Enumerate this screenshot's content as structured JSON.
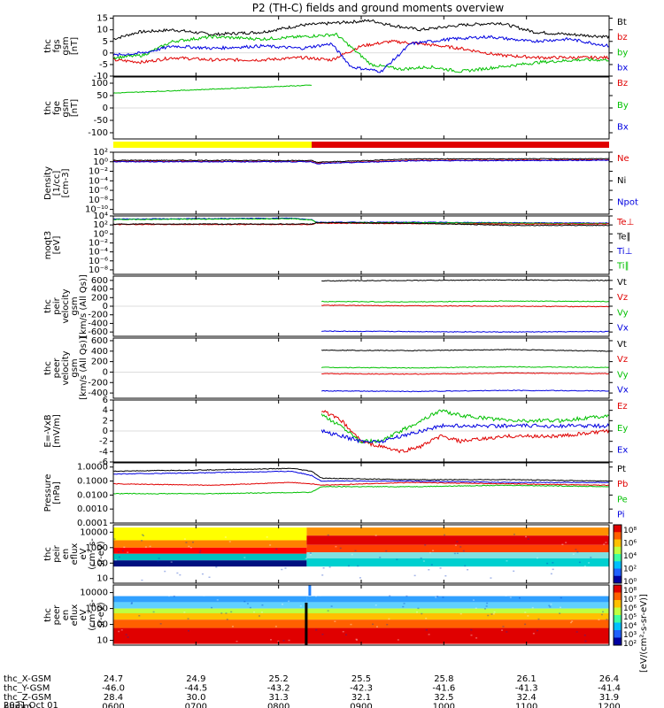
{
  "title": "P2 (TH-C) fields and ground moments overview",
  "chart_data": [
    {
      "id": "fgs",
      "type": "line",
      "ylabel": [
        "thc",
        "fgs",
        "gsm",
        "[nT]"
      ],
      "yticks": [
        15,
        10,
        5,
        0,
        -5,
        -10
      ],
      "ylim": [
        -10,
        16
      ],
      "legend": [
        {
          "name": "Bt",
          "color": "#000000"
        },
        {
          "name": "bz",
          "color": "#e00000"
        },
        {
          "name": "by",
          "color": "#00c000"
        },
        {
          "name": "bx",
          "color": "#0000e0"
        }
      ],
      "series": [
        {
          "name": "Bt",
          "x": [
            0,
            0.05,
            0.12,
            0.2,
            0.3,
            0.38,
            0.45,
            0.52,
            0.56,
            0.62,
            0.7,
            0.78,
            0.85,
            0.92,
            1.0
          ],
          "y": [
            6,
            9,
            10,
            8,
            9,
            12,
            13,
            14,
            12,
            10,
            12,
            13,
            9,
            8,
            7
          ]
        },
        {
          "name": "bz",
          "x": [
            0,
            0.06,
            0.12,
            0.2,
            0.3,
            0.38,
            0.44,
            0.5,
            0.56,
            0.62,
            0.7,
            0.78,
            0.86,
            0.94,
            1.0
          ],
          "y": [
            -3,
            -4,
            -2,
            -3,
            -3,
            -2,
            -3,
            3,
            5,
            4,
            2,
            -1,
            -2,
            -2,
            -2
          ]
        },
        {
          "name": "by",
          "x": [
            0,
            0.06,
            0.12,
            0.2,
            0.3,
            0.38,
            0.45,
            0.52,
            0.58,
            0.64,
            0.7,
            0.78,
            0.86,
            0.94,
            1.0
          ],
          "y": [
            -2,
            -1,
            5,
            7,
            6,
            7,
            8,
            -5,
            -7,
            -6,
            -8,
            -6,
            -4,
            -3,
            -3
          ]
        },
        {
          "name": "bx",
          "x": [
            0,
            0.06,
            0.12,
            0.2,
            0.3,
            0.38,
            0.44,
            0.48,
            0.54,
            0.6,
            0.68,
            0.76,
            0.84,
            0.92,
            1.0
          ],
          "y": [
            -1,
            0,
            3,
            2,
            3,
            2,
            4,
            -6,
            -8,
            4,
            6,
            7,
            5,
            6,
            3
          ]
        }
      ]
    },
    {
      "id": "fge",
      "type": "line",
      "ylabel": [
        "thc",
        "fge",
        "gsm",
        "[nT]"
      ],
      "yticks": [
        100,
        50,
        0,
        -50,
        -100
      ],
      "ylim": [
        -125,
        125
      ],
      "legend": [
        {
          "name": "Bz",
          "color": "#e00000"
        },
        {
          "name": "By",
          "color": "#00c000"
        },
        {
          "name": "Bx",
          "color": "#0000e0"
        }
      ],
      "series": [
        {
          "name": "By",
          "x": [
            0,
            0.1,
            0.2,
            0.3,
            0.4
          ],
          "y": [
            60,
            68,
            76,
            84,
            92
          ]
        }
      ],
      "status_bar": [
        {
          "from": 0,
          "to": 0.4,
          "color": "#ffff00"
        },
        {
          "from": 0.4,
          "to": 1.0,
          "color": "#e00000"
        }
      ]
    },
    {
      "id": "density",
      "type": "line",
      "ylabel": [
        "Density",
        "[1/cc]",
        "[cm-3]"
      ],
      "yticks": [
        "10²",
        "10⁰",
        "10⁻²",
        "10⁻⁴",
        "10⁻⁶",
        "10⁻⁸",
        "10⁻¹⁰"
      ],
      "ylim": [
        -11,
        2
      ],
      "log": true,
      "legend": [
        {
          "name": "Ne",
          "color": "#e00000"
        },
        {
          "name": "Ni",
          "color": "#000000"
        },
        {
          "name": "Npot",
          "color": "#0000e0"
        }
      ],
      "series": [
        {
          "name": "Ne",
          "x": [
            0,
            0.2,
            0.4,
            0.41,
            0.6,
            0.8,
            1.0
          ],
          "y": [
            0.1,
            0.1,
            0.05,
            -0.3,
            0.3,
            0.35,
            0.4
          ]
        },
        {
          "name": "Ni",
          "x": [
            0,
            0.2,
            0.4,
            0.41,
            0.6,
            0.8,
            1.0
          ],
          "y": [
            0.3,
            0.3,
            0.25,
            -0.1,
            0.6,
            0.6,
            0.65
          ]
        },
        {
          "name": "Npot",
          "x": [
            0,
            0.2,
            0.4,
            0.41,
            0.6,
            0.8,
            1.0
          ],
          "y": [
            0.0,
            0.0,
            0.0,
            -0.4,
            0.2,
            0.25,
            0.3
          ]
        }
      ]
    },
    {
      "id": "temp",
      "type": "line",
      "ylabel": [
        "moqt3",
        "[eV]"
      ],
      "yticks": [
        "10⁴",
        "10²",
        "10⁰",
        "10⁻²",
        "10⁻⁴",
        "10⁻⁶",
        "10⁻⁸"
      ],
      "ylim": [
        -9,
        4
      ],
      "log": true,
      "legend": [
        {
          "name": "Te⊥",
          "color": "#e00000"
        },
        {
          "name": "Te∥",
          "color": "#000000"
        },
        {
          "name": "Ti⊥",
          "color": "#0000e0"
        },
        {
          "name": "Ti∥",
          "color": "#00c000"
        }
      ],
      "series": [
        {
          "name": "Ti⊥",
          "x": [
            0,
            0.2,
            0.36,
            0.4,
            0.41,
            0.6,
            0.8,
            1.0
          ],
          "y": [
            3.3,
            3.4,
            3.5,
            3.2,
            2.6,
            2.6,
            2.5,
            2.4
          ]
        },
        {
          "name": "Ti∥",
          "x": [
            0,
            0.2,
            0.36,
            0.4,
            0.41,
            0.6,
            0.8,
            1.0
          ],
          "y": [
            3.2,
            3.3,
            3.4,
            3.1,
            2.5,
            2.5,
            2.4,
            2.3
          ]
        },
        {
          "name": "Te⊥",
          "x": [
            0,
            0.4,
            0.41,
            0.6,
            0.8,
            1.0
          ],
          "y": [
            2.1,
            2.1,
            2.4,
            2.3,
            2.2,
            2.2
          ]
        },
        {
          "name": "Te∥",
          "x": [
            0,
            0.4,
            0.41,
            0.6,
            0.8,
            1.0
          ],
          "y": [
            2.2,
            2.2,
            2.5,
            2.4,
            1.9,
            1.9
          ]
        }
      ]
    },
    {
      "id": "peir_vel",
      "type": "line",
      "ylabel": [
        "thc",
        "peir",
        "velocity",
        "gsm",
        "[km/s (All Qs)]"
      ],
      "yticks": [
        600,
        400,
        200,
        0,
        -200,
        -400,
        -600
      ],
      "ylim": [
        -700,
        700
      ],
      "legend": [
        {
          "name": "Vt",
          "color": "#000000"
        },
        {
          "name": "Vz",
          "color": "#e00000"
        },
        {
          "name": "Vy",
          "color": "#00c000"
        },
        {
          "name": "Vx",
          "color": "#0000e0"
        }
      ],
      "series": [
        {
          "name": "Vt",
          "x": [
            0.42,
            0.6,
            0.8,
            1.0
          ],
          "y": [
            590,
            600,
            610,
            600
          ]
        },
        {
          "name": "Vy",
          "x": [
            0.42,
            0.6,
            0.8,
            1.0
          ],
          "y": [
            110,
            100,
            120,
            110
          ]
        },
        {
          "name": "Vz",
          "x": [
            0.42,
            0.6,
            0.8,
            1.0
          ],
          "y": [
            20,
            10,
            0,
            -10
          ]
        },
        {
          "name": "Vx",
          "x": [
            0.42,
            0.6,
            0.8,
            1.0
          ],
          "y": [
            -580,
            -590,
            -600,
            -590
          ]
        }
      ]
    },
    {
      "id": "peer_vel",
      "type": "line",
      "ylabel": [
        "thc",
        "peer",
        "velocity",
        "gsm",
        "[km/s (All Qs)]"
      ],
      "yticks": [
        600,
        400,
        200,
        0,
        -200,
        -400
      ],
      "ylim": [
        -500,
        650
      ],
      "legend": [
        {
          "name": "Vt",
          "color": "#000000"
        },
        {
          "name": "Vz",
          "color": "#e00000"
        },
        {
          "name": "Vy",
          "color": "#00c000"
        },
        {
          "name": "Vx",
          "color": "#0000e0"
        }
      ],
      "series": [
        {
          "name": "Vt",
          "x": [
            0.42,
            0.6,
            0.8,
            1.0
          ],
          "y": [
            420,
            410,
            430,
            400
          ]
        },
        {
          "name": "Vy",
          "x": [
            0.42,
            0.6,
            0.8,
            1.0
          ],
          "y": [
            90,
            80,
            100,
            90
          ]
        },
        {
          "name": "Vz",
          "x": [
            0.42,
            0.6,
            0.8,
            1.0
          ],
          "y": [
            -30,
            -40,
            -20,
            -30
          ]
        },
        {
          "name": "Vx",
          "x": [
            0.42,
            0.6,
            0.8,
            1.0
          ],
          "y": [
            -360,
            -370,
            -350,
            -360
          ]
        }
      ]
    },
    {
      "id": "efield",
      "type": "line",
      "ylabel": [
        "E=-VxB",
        "[mV/m]"
      ],
      "yticks": [
        6,
        4,
        2,
        0,
        -2,
        -4,
        -6
      ],
      "ylim": [
        -6,
        6
      ],
      "legend": [
        {
          "name": "Ez",
          "color": "#e00000"
        },
        {
          "name": "Ey",
          "color": "#00c000"
        },
        {
          "name": "Ex",
          "color": "#0000e0"
        }
      ],
      "series": [
        {
          "name": "Ez",
          "x": [
            0.42,
            0.46,
            0.5,
            0.54,
            0.58,
            0.62,
            0.66,
            0.7,
            0.8,
            0.9,
            1.0
          ],
          "y": [
            4,
            2,
            -2,
            -3,
            -4,
            -3,
            -1,
            -2,
            -1,
            -1,
            0
          ]
        },
        {
          "name": "Ey",
          "x": [
            0.42,
            0.46,
            0.5,
            0.54,
            0.58,
            0.62,
            0.66,
            0.7,
            0.8,
            0.9,
            1.0
          ],
          "y": [
            3,
            1,
            -2,
            -2,
            0,
            2,
            4,
            3,
            2,
            2,
            3
          ]
        },
        {
          "name": "Ex",
          "x": [
            0.42,
            0.46,
            0.5,
            0.54,
            0.58,
            0.62,
            0.66,
            0.7,
            0.8,
            0.9,
            1.0
          ],
          "y": [
            0,
            -1,
            -2,
            -2,
            -1,
            0,
            1,
            1,
            1,
            1,
            1
          ]
        }
      ]
    },
    {
      "id": "pressure",
      "type": "line",
      "ylabel": [
        "Pressure",
        "[nPa]"
      ],
      "yticks": [
        "1.0000",
        "0.1000",
        "0.0100",
        "0.0010",
        "0.0001"
      ],
      "ylim": [
        -4,
        0.3
      ],
      "log": true,
      "legend": [
        {
          "name": "Pt",
          "color": "#000000"
        },
        {
          "name": "Pb",
          "color": "#e00000"
        },
        {
          "name": "Pe",
          "color": "#00c000"
        },
        {
          "name": "Pi",
          "color": "#0000e0"
        }
      ],
      "series": [
        {
          "name": "Pt",
          "x": [
            0,
            0.2,
            0.36,
            0.4,
            0.42,
            0.6,
            0.8,
            1.0
          ],
          "y": [
            -0.3,
            -0.2,
            -0.1,
            -0.3,
            -0.8,
            -0.9,
            -0.9,
            -1.0
          ]
        },
        {
          "name": "Pb",
          "x": [
            0,
            0.2,
            0.36,
            0.4,
            0.42,
            0.6,
            0.8,
            1.0
          ],
          "y": [
            -1.2,
            -1.3,
            -1.1,
            -1.2,
            -1.3,
            -1.1,
            -1.2,
            -1.3
          ]
        },
        {
          "name": "Pe",
          "x": [
            0,
            0.2,
            0.4,
            0.42,
            0.6,
            0.8,
            1.0
          ],
          "y": [
            -1.9,
            -1.9,
            -1.8,
            -1.4,
            -1.4,
            -1.3,
            -1.4
          ]
        },
        {
          "name": "Pi",
          "x": [
            0,
            0.2,
            0.36,
            0.4,
            0.42,
            0.6,
            0.8,
            1.0
          ],
          "y": [
            -0.5,
            -0.4,
            -0.3,
            -0.6,
            -1.0,
            -1.0,
            -1.1,
            -1.1
          ]
        }
      ]
    },
    {
      "id": "peir_spec",
      "type": "heatmap",
      "ylabel": [
        "thc",
        "peir",
        "en",
        "eflux",
        "eV",
        "(cm²-s-",
        "sr-eV)"
      ],
      "yticks": [
        10000,
        1000,
        100,
        10
      ],
      "ylim": [
        5,
        30000
      ],
      "colorbar_ticks": [
        "10⁸",
        "10⁶",
        "10⁴",
        "10²",
        "10⁰"
      ],
      "colorbar_label": "[eV/(cm²-s-sr-eV)]"
    },
    {
      "id": "peer_spec",
      "type": "heatmap",
      "ylabel": [
        "thc",
        "peer",
        "en",
        "eflux",
        "eV",
        "(cm²-s-",
        "sr-eV)"
      ],
      "yticks": [
        10000,
        1000,
        100,
        10
      ],
      "ylim": [
        5,
        30000
      ],
      "colorbar_ticks": [
        "10⁸",
        "10⁷",
        "10⁶",
        "10⁵",
        "10⁴",
        "10³",
        "10²"
      ],
      "colorbar_label": "[eV/(cm²-s-sr-eV)]"
    }
  ],
  "xaxis": {
    "rows": [
      {
        "label": "thc_X-GSM",
        "values": [
          "24.7",
          "24.9",
          "25.2",
          "25.5",
          "25.8",
          "26.1",
          "26.4"
        ]
      },
      {
        "label": "thc_Y-GSM",
        "values": [
          "-46.0",
          "-44.5",
          "-43.2",
          "-42.3",
          "-41.6",
          "-41.3",
          "-41.4"
        ]
      },
      {
        "label": "thc_Z-GSM",
        "values": [
          "28.4",
          "30.0",
          "31.3",
          "32.1",
          "32.5",
          "32.4",
          "31.9"
        ]
      },
      {
        "label": "hhmm",
        "values": [
          "0600",
          "0700",
          "0800",
          "0900",
          "1000",
          "1100",
          "1200"
        ]
      }
    ],
    "date": "2021 Oct 01"
  }
}
